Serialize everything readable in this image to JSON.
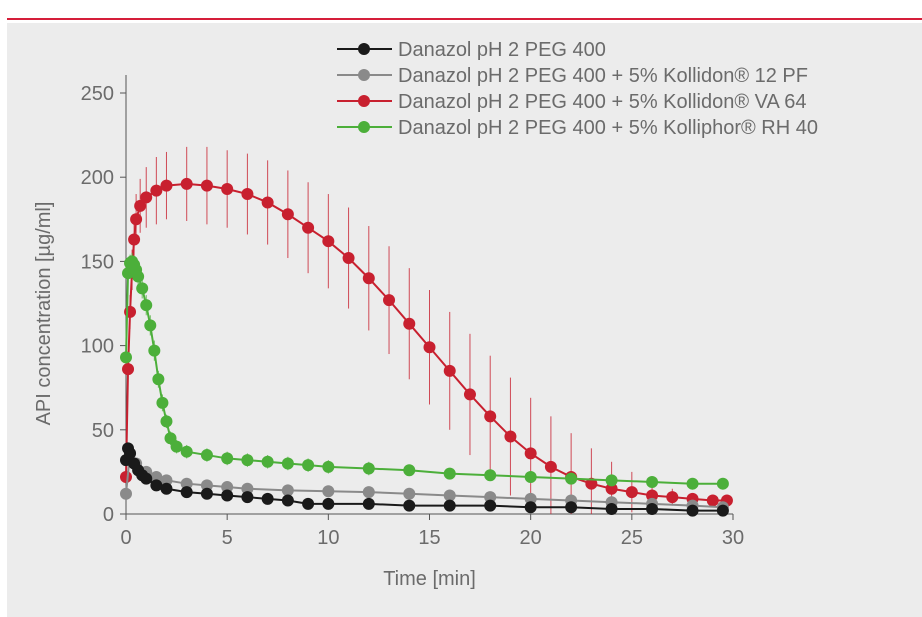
{
  "colors": {
    "top_rule": "#d51e3a",
    "panel_bg": "#ececec",
    "axis": "#555555",
    "text": "#6b6b6b"
  },
  "chart_data": {
    "type": "scatter",
    "xlabel": "Time [min]",
    "ylabel": "API concentration [µg/ml]",
    "xlim": [
      0,
      30
    ],
    "ylim": [
      0,
      250
    ],
    "xticks": [
      0,
      5,
      10,
      15,
      20,
      25,
      30
    ],
    "yticks": [
      0,
      50,
      100,
      150,
      200,
      250
    ],
    "grid": false,
    "legend_position": "top-right",
    "series": [
      {
        "name": "Danazol pH 2 PEG 400",
        "color": "#1a1a1a",
        "x": [
          0,
          0.1,
          0.2,
          0.4,
          0.6,
          0.8,
          1,
          1.5,
          2,
          3,
          4,
          5,
          6,
          7,
          8,
          9,
          10,
          12,
          14,
          16,
          18,
          20,
          22,
          24,
          26,
          28,
          29.5
        ],
        "y": [
          32,
          39,
          36,
          30,
          26,
          23,
          21,
          17,
          15,
          13,
          12,
          11,
          10,
          9,
          8,
          6,
          6,
          6,
          5,
          5,
          5,
          4,
          4,
          3,
          3,
          2,
          2
        ],
        "error": [
          1,
          1,
          1,
          1,
          1,
          1,
          1,
          1,
          1,
          1,
          1,
          1,
          1,
          1,
          1,
          1,
          1,
          1,
          1,
          1,
          1,
          1,
          1,
          1,
          1,
          1,
          1
        ]
      },
      {
        "name": "Danazol pH 2 PEG 400 + 5% Kollidon® 12 PF",
        "color": "#8a8a8a",
        "x": [
          0,
          0.2,
          0.5,
          1,
          1.5,
          2,
          3,
          4,
          5,
          6,
          8,
          10,
          12,
          14,
          16,
          18,
          20,
          22,
          24,
          26,
          28,
          29.5
        ],
        "y": [
          12,
          36,
          30,
          25,
          22,
          20,
          18,
          17,
          16,
          15,
          14,
          13.5,
          13,
          12,
          11,
          10,
          9,
          8,
          7,
          6,
          5,
          4
        ],
        "error": [
          2,
          3,
          3,
          2,
          2,
          2,
          2,
          2,
          2,
          2,
          2,
          2,
          2,
          2,
          2,
          2,
          2,
          2,
          2,
          2,
          2,
          2
        ]
      },
      {
        "name": "Danazol pH 2 PEG 400 + 5% Kollidon® VA 64",
        "color": "#c8202f",
        "x": [
          0,
          0.1,
          0.2,
          0.3,
          0.4,
          0.5,
          0.7,
          1,
          1.5,
          2,
          3,
          4,
          5,
          6,
          7,
          8,
          9,
          10,
          11,
          12,
          13,
          14,
          15,
          16,
          17,
          18,
          19,
          20,
          21,
          22,
          23,
          24,
          25,
          26,
          27,
          28,
          29,
          29.7
        ],
        "y": [
          22,
          86,
          120,
          145,
          163,
          175,
          183,
          188,
          192,
          195,
          196,
          195,
          193,
          190,
          185,
          178,
          170,
          162,
          152,
          140,
          127,
          113,
          99,
          85,
          71,
          58,
          46,
          36,
          28,
          22,
          18,
          15,
          13,
          11,
          10,
          9,
          8,
          8
        ],
        "error": [
          2,
          5,
          10,
          12,
          14,
          15,
          16,
          18,
          20,
          20,
          22,
          23,
          23,
          24,
          25,
          26,
          27,
          28,
          30,
          31,
          32,
          33,
          34,
          35,
          36,
          36,
          35,
          33,
          30,
          26,
          21,
          16,
          12,
          8,
          5,
          3,
          2,
          2
        ]
      },
      {
        "name": "Danazol pH 2 PEG 400 + 5% Kolliphor® RH 40",
        "color": "#4caf3a",
        "x": [
          0,
          0.1,
          0.2,
          0.3,
          0.4,
          0.5,
          0.6,
          0.8,
          1,
          1.2,
          1.4,
          1.6,
          1.8,
          2,
          2.2,
          2.5,
          3,
          4,
          5,
          6,
          7,
          8,
          9,
          10,
          12,
          14,
          16,
          18,
          20,
          22,
          24,
          26,
          28,
          29.5
        ],
        "y": [
          93,
          143,
          149,
          150,
          148,
          145,
          141,
          134,
          124,
          112,
          97,
          80,
          66,
          55,
          45,
          40,
          37,
          35,
          33,
          32,
          31,
          30,
          29,
          28,
          27,
          26,
          24,
          23,
          22,
          21,
          20,
          19,
          18,
          18
        ],
        "error": [
          3,
          4,
          5,
          5,
          5,
          5,
          6,
          6,
          6,
          6,
          6,
          5,
          5,
          4,
          4,
          4,
          4,
          4,
          4,
          4,
          4,
          4,
          4,
          4,
          4,
          3,
          3,
          3,
          3,
          3,
          2,
          2,
          2,
          2
        ]
      }
    ]
  }
}
